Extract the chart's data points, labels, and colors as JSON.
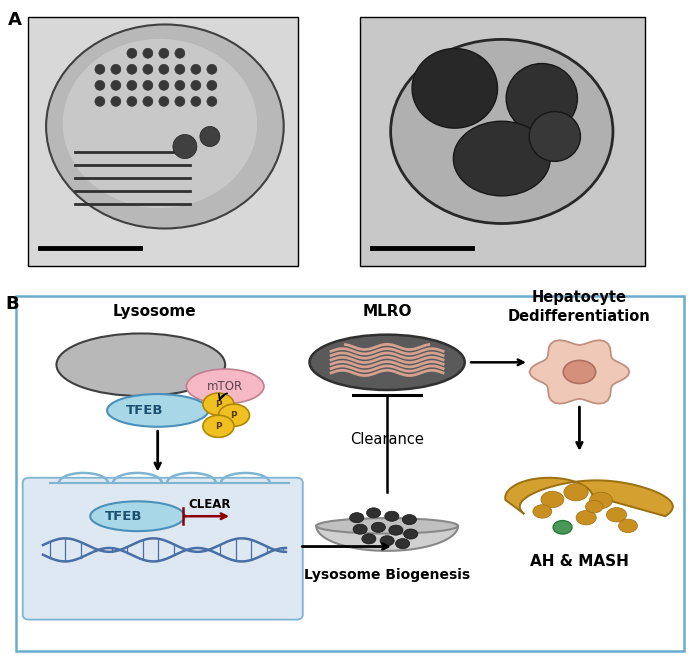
{
  "panel_A_label": "A",
  "panel_B_label": "B",
  "lysosome_label": "Lysosome",
  "mtor_label": "mTOR",
  "tfeb_label": "TFEB",
  "clear_label": "CLEAR",
  "mlro_label": "MLRO",
  "hepatocyte_label": "Hepatocyte\nDedifferentiation",
  "clearance_label": "Clearance",
  "lysosome_bio_label": "Lysosome Biogenesis",
  "ah_mash_label": "AH & MASH",
  "lysosome_color": "#b0b0b0",
  "mtor_color": "#f5b8c4",
  "tfeb_color": "#a8d8e8",
  "phospho_color": "#f0c020",
  "mlro_bg_color": "#5a5a5a",
  "mlro_inner_color": "#d4a090",
  "hepatocyte_color": "#f0c8b8",
  "nucleus_color": "#d4907a",
  "dna_color": "#4a6fa5",
  "nucleus_bg_color": "#dce8f0",
  "border_color": "#7fb5d0",
  "box_border_color": "#6aaccf",
  "liver_color": "#d4a030",
  "background_outer": "#ffffff"
}
